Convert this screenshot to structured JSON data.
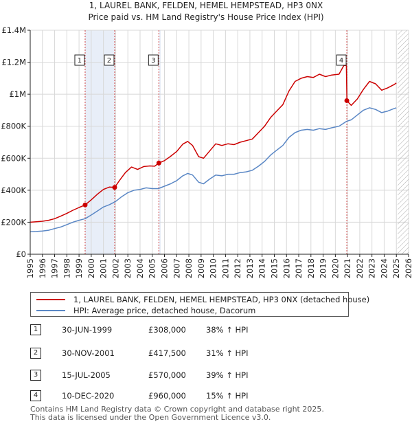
{
  "chart_data": {
    "type": "line",
    "title": "1, LAUREL BANK, FELDEN, HEMEL HEMPSTEAD, HP3 0NX",
    "subtitle": "Price paid vs. HM Land Registry's House Price Index (HPI)",
    "xlabel": "",
    "ylabel": "",
    "xlim": [
      1995,
      2026
    ],
    "ylim": [
      0,
      1400000
    ],
    "y_ticks": [
      {
        "value": 0,
        "label": "£0"
      },
      {
        "value": 200000,
        "label": "£200K"
      },
      {
        "value": 400000,
        "label": "£400K"
      },
      {
        "value": 600000,
        "label": "£600K"
      },
      {
        "value": 800000,
        "label": "£800K"
      },
      {
        "value": 1000000,
        "label": "£1M"
      },
      {
        "value": 1200000,
        "label": "£1.2M"
      },
      {
        "value": 1400000,
        "label": "£1.4M"
      }
    ],
    "x_ticks": [
      "1995",
      "1996",
      "1997",
      "1998",
      "1999",
      "2000",
      "2001",
      "2002",
      "2003",
      "2004",
      "2005",
      "2006",
      "2007",
      "2008",
      "2009",
      "2010",
      "2011",
      "2012",
      "2013",
      "2014",
      "2015",
      "2016",
      "2017",
      "2018",
      "2019",
      "2020",
      "2021",
      "2022",
      "2023",
      "2024",
      "2025",
      "2026"
    ],
    "grid": true,
    "shaded_periods": [
      [
        1999.5,
        2001.92
      ],
      [
        2005.54,
        2005.7
      ]
    ],
    "future_hatch_from": 2025.1,
    "series": [
      {
        "name": "1, LAUREL BANK, FELDEN, HEMEL HEMPSTEAD, HP3 0NX (detached house)",
        "color": "#cc0000",
        "points": [
          [
            1995.0,
            200000
          ],
          [
            1995.5,
            203000
          ],
          [
            1996.0,
            206000
          ],
          [
            1996.5,
            212000
          ],
          [
            1997.0,
            222000
          ],
          [
            1997.5,
            238000
          ],
          [
            1998.0,
            255000
          ],
          [
            1998.5,
            275000
          ],
          [
            1999.0,
            292000
          ],
          [
            1999.5,
            308000
          ],
          [
            2000.0,
            340000
          ],
          [
            2000.5,
            375000
          ],
          [
            2001.0,
            405000
          ],
          [
            2001.5,
            420000
          ],
          [
            2001.92,
            417500
          ],
          [
            2002.3,
            460000
          ],
          [
            2002.8,
            510000
          ],
          [
            2003.3,
            545000
          ],
          [
            2003.8,
            530000
          ],
          [
            2004.3,
            548000
          ],
          [
            2004.8,
            552000
          ],
          [
            2005.2,
            550000
          ],
          [
            2005.54,
            570000
          ],
          [
            2006.0,
            585000
          ],
          [
            2006.5,
            612000
          ],
          [
            2007.0,
            642000
          ],
          [
            2007.5,
            688000
          ],
          [
            2007.9,
            705000
          ],
          [
            2008.3,
            680000
          ],
          [
            2008.8,
            610000
          ],
          [
            2009.2,
            600000
          ],
          [
            2009.7,
            645000
          ],
          [
            2010.2,
            690000
          ],
          [
            2010.7,
            680000
          ],
          [
            2011.2,
            690000
          ],
          [
            2011.7,
            685000
          ],
          [
            2012.2,
            700000
          ],
          [
            2012.7,
            710000
          ],
          [
            2013.2,
            720000
          ],
          [
            2013.7,
            760000
          ],
          [
            2014.2,
            800000
          ],
          [
            2014.7,
            855000
          ],
          [
            2015.2,
            895000
          ],
          [
            2015.7,
            935000
          ],
          [
            2016.2,
            1020000
          ],
          [
            2016.7,
            1080000
          ],
          [
            2017.2,
            1100000
          ],
          [
            2017.7,
            1110000
          ],
          [
            2018.2,
            1105000
          ],
          [
            2018.7,
            1125000
          ],
          [
            2019.2,
            1110000
          ],
          [
            2019.7,
            1120000
          ],
          [
            2020.3,
            1125000
          ],
          [
            2020.7,
            1180000
          ],
          [
            2020.9,
            1180000
          ],
          [
            2020.95,
            960000
          ],
          [
            2021.3,
            930000
          ],
          [
            2021.8,
            970000
          ],
          [
            2022.3,
            1030000
          ],
          [
            2022.8,
            1080000
          ],
          [
            2023.3,
            1065000
          ],
          [
            2023.8,
            1025000
          ],
          [
            2024.3,
            1040000
          ],
          [
            2024.8,
            1060000
          ],
          [
            2025.0,
            1070000
          ]
        ]
      },
      {
        "name": "HPI: Average price, detached house, Dacorum",
        "color": "#5a87c5",
        "points": [
          [
            1995.0,
            140000
          ],
          [
            1995.5,
            142000
          ],
          [
            1996.0,
            145000
          ],
          [
            1996.5,
            150000
          ],
          [
            1997.0,
            160000
          ],
          [
            1997.5,
            170000
          ],
          [
            1998.0,
            185000
          ],
          [
            1998.5,
            200000
          ],
          [
            1999.0,
            212000
          ],
          [
            1999.5,
            222000
          ],
          [
            2000.0,
            245000
          ],
          [
            2000.5,
            270000
          ],
          [
            2001.0,
            295000
          ],
          [
            2001.5,
            310000
          ],
          [
            2002.0,
            330000
          ],
          [
            2002.5,
            360000
          ],
          [
            2003.0,
            385000
          ],
          [
            2003.5,
            400000
          ],
          [
            2004.0,
            405000
          ],
          [
            2004.5,
            415000
          ],
          [
            2005.0,
            410000
          ],
          [
            2005.5,
            410000
          ],
          [
            2006.0,
            425000
          ],
          [
            2006.5,
            440000
          ],
          [
            2007.0,
            460000
          ],
          [
            2007.5,
            490000
          ],
          [
            2007.9,
            505000
          ],
          [
            2008.3,
            495000
          ],
          [
            2008.8,
            450000
          ],
          [
            2009.2,
            440000
          ],
          [
            2009.7,
            470000
          ],
          [
            2010.2,
            495000
          ],
          [
            2010.7,
            490000
          ],
          [
            2011.2,
            500000
          ],
          [
            2011.7,
            500000
          ],
          [
            2012.2,
            510000
          ],
          [
            2012.7,
            515000
          ],
          [
            2013.2,
            525000
          ],
          [
            2013.7,
            550000
          ],
          [
            2014.2,
            580000
          ],
          [
            2014.7,
            620000
          ],
          [
            2015.2,
            650000
          ],
          [
            2015.7,
            680000
          ],
          [
            2016.2,
            730000
          ],
          [
            2016.7,
            760000
          ],
          [
            2017.2,
            775000
          ],
          [
            2017.7,
            780000
          ],
          [
            2018.2,
            775000
          ],
          [
            2018.7,
            785000
          ],
          [
            2019.2,
            780000
          ],
          [
            2019.7,
            790000
          ],
          [
            2020.3,
            800000
          ],
          [
            2020.9,
            830000
          ],
          [
            2021.3,
            840000
          ],
          [
            2021.8,
            870000
          ],
          [
            2022.3,
            900000
          ],
          [
            2022.8,
            915000
          ],
          [
            2023.3,
            905000
          ],
          [
            2023.8,
            885000
          ],
          [
            2024.3,
            895000
          ],
          [
            2024.8,
            910000
          ],
          [
            2025.0,
            915000
          ]
        ]
      }
    ],
    "sales": [
      {
        "num": "1",
        "year": 1999.5,
        "value": 308000
      },
      {
        "num": "2",
        "year": 2001.92,
        "value": 417500
      },
      {
        "num": "3",
        "year": 2005.54,
        "value": 570000
      },
      {
        "num": "4",
        "year": 2020.94,
        "value": 960000
      }
    ]
  },
  "legend": {
    "property_label": "1, LAUREL BANK, FELDEN, HEMEL HEMPSTEAD, HP3 0NX (detached house)",
    "hpi_label": "HPI: Average price, detached house, Dacorum"
  },
  "sales_table": [
    {
      "num": "1",
      "date": "30-JUN-1999",
      "price": "£308,000",
      "hpi": "38% ↑ HPI"
    },
    {
      "num": "2",
      "date": "30-NOV-2001",
      "price": "£417,500",
      "hpi": "31% ↑ HPI"
    },
    {
      "num": "3",
      "date": "15-JUL-2005",
      "price": "£570,000",
      "hpi": "39% ↑ HPI"
    },
    {
      "num": "4",
      "date": "10-DEC-2020",
      "price": "£960,000",
      "hpi": "15% ↑ HPI"
    }
  ],
  "footer": {
    "line1": "Contains HM Land Registry data © Crown copyright and database right 2025.",
    "line2": "This data is licensed under the Open Government Licence v3.0."
  },
  "colors": {
    "property": "#cc0000",
    "hpi": "#5a87c5",
    "shade": "#e8eef8",
    "grid": "#d8d8d8"
  }
}
